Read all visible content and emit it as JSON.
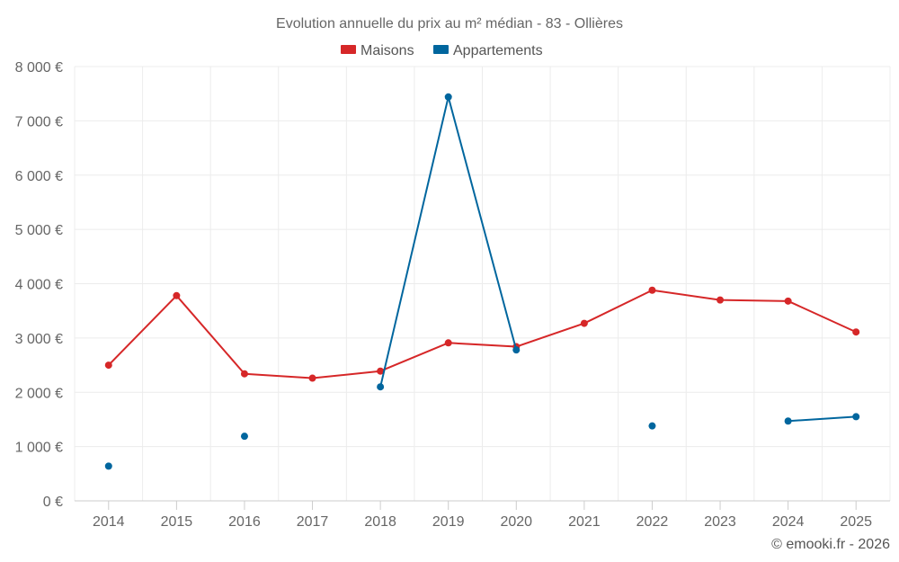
{
  "chart_data": {
    "type": "line",
    "title": "Evolution annuelle du prix au m² médian - 83 - Ollières",
    "categories": [
      "2014",
      "2015",
      "2016",
      "2017",
      "2018",
      "2019",
      "2020",
      "2021",
      "2022",
      "2023",
      "2024",
      "2025"
    ],
    "ylim": [
      0,
      8000
    ],
    "yticks": [
      0,
      1000,
      2000,
      3000,
      4000,
      5000,
      6000,
      7000,
      8000
    ],
    "ytick_labels": [
      "0 €",
      "1 000 €",
      "2 000 €",
      "3 000 €",
      "4 000 €",
      "5 000 €",
      "6 000 €",
      "7 000 €",
      "8 000 €"
    ],
    "legend_position": "top-center",
    "grid": true,
    "series": [
      {
        "name": "Maisons",
        "color": "#d62728",
        "values": [
          2500,
          3780,
          2340,
          2260,
          2390,
          2910,
          2840,
          3270,
          3880,
          3700,
          3680,
          3110
        ]
      },
      {
        "name": "Appartements",
        "color": "#00669e",
        "values": [
          640,
          null,
          1190,
          null,
          2100,
          7440,
          2780,
          null,
          1380,
          null,
          1470,
          1550
        ]
      }
    ]
  },
  "credit": "© emooki.fr - 2026"
}
